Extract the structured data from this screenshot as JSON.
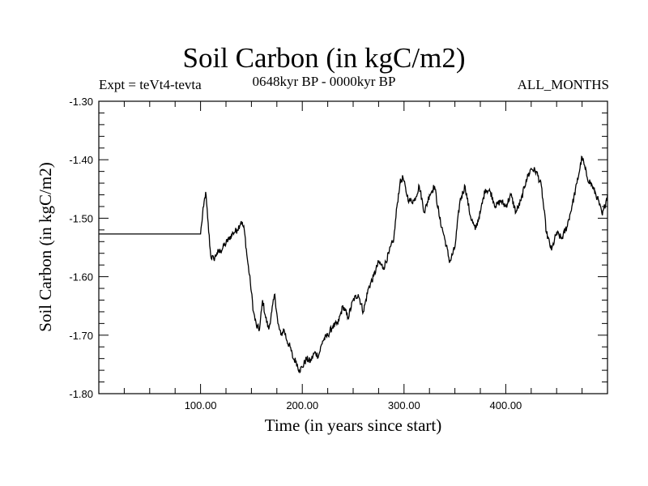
{
  "chart_data": {
    "type": "line",
    "title": "Soil Carbon (in kgC/m2)",
    "subtitle_left": "Expt = teVt4-tevta",
    "subtitle_center": "0648kyr BP - 0000kyr BP",
    "subtitle_right": "ALL_MONTHS",
    "xlabel": "Time (in years since start)",
    "ylabel": "Soil Carbon (in kgC/m2)",
    "xlim": [
      0,
      500
    ],
    "ylim": [
      -1.8,
      -1.3
    ],
    "xticks": [
      100,
      200,
      300,
      400
    ],
    "xtick_labels": [
      "100.00",
      "200.00",
      "300.00",
      "400.00"
    ],
    "yticks": [
      -1.3,
      -1.4,
      -1.5,
      -1.6,
      -1.7,
      -1.8
    ],
    "ytick_labels": [
      "-1.30",
      "-1.40",
      "-1.50",
      "-1.60",
      "-1.70",
      "-1.80"
    ],
    "grid": false,
    "series": [
      {
        "color": "#000000",
        "x": [
          0,
          100,
          101,
          103,
          105,
          107,
          110,
          113,
          116,
          120,
          124,
          128,
          132,
          136,
          140,
          143,
          146,
          149,
          152,
          155,
          158,
          161,
          164,
          167,
          170,
          173,
          176,
          179,
          182,
          185,
          188,
          191,
          194,
          197,
          200,
          204,
          208,
          212,
          216,
          220,
          225,
          230,
          235,
          240,
          245,
          250,
          255,
          260,
          265,
          270,
          275,
          280,
          285,
          290,
          293,
          296,
          299,
          302,
          305,
          310,
          315,
          320,
          325,
          330,
          335,
          340,
          345,
          350,
          355,
          360,
          365,
          370,
          375,
          380,
          385,
          390,
          395,
          400,
          405,
          410,
          415,
          420,
          425,
          430,
          435,
          440,
          445,
          450,
          455,
          460,
          465,
          470,
          475,
          480,
          485,
          490,
          495,
          500
        ],
        "y": [
          -1.527,
          -1.527,
          -1.51,
          -1.48,
          -1.455,
          -1.5,
          -1.565,
          -1.57,
          -1.56,
          -1.555,
          -1.545,
          -1.535,
          -1.525,
          -1.52,
          -1.505,
          -1.52,
          -1.57,
          -1.61,
          -1.66,
          -1.685,
          -1.69,
          -1.64,
          -1.67,
          -1.69,
          -1.66,
          -1.63,
          -1.68,
          -1.7,
          -1.69,
          -1.71,
          -1.72,
          -1.74,
          -1.745,
          -1.76,
          -1.755,
          -1.74,
          -1.745,
          -1.73,
          -1.735,
          -1.71,
          -1.7,
          -1.685,
          -1.68,
          -1.65,
          -1.67,
          -1.64,
          -1.63,
          -1.66,
          -1.62,
          -1.6,
          -1.575,
          -1.585,
          -1.56,
          -1.535,
          -1.48,
          -1.44,
          -1.43,
          -1.455,
          -1.47,
          -1.47,
          -1.445,
          -1.49,
          -1.46,
          -1.445,
          -1.5,
          -1.535,
          -1.575,
          -1.55,
          -1.47,
          -1.445,
          -1.495,
          -1.52,
          -1.49,
          -1.45,
          -1.455,
          -1.48,
          -1.47,
          -1.48,
          -1.46,
          -1.49,
          -1.47,
          -1.435,
          -1.415,
          -1.42,
          -1.445,
          -1.525,
          -1.555,
          -1.525,
          -1.535,
          -1.515,
          -1.48,
          -1.44,
          -1.395,
          -1.43,
          -1.445,
          -1.465,
          -1.495,
          -1.46
        ]
      }
    ]
  }
}
